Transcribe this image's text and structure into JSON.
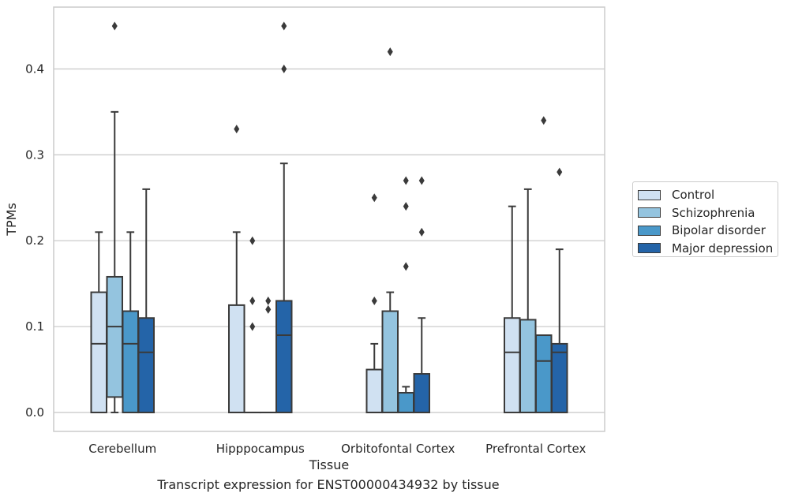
{
  "chart_data": {
    "type": "box",
    "xlabel": "Tissue",
    "ylabel": "TPMs",
    "ylim": [
      -0.022,
      0.472
    ],
    "yticks": [
      0.0,
      0.1,
      0.2,
      0.3,
      0.4
    ],
    "ytick_labels": [
      "0.0",
      "0.1",
      "0.2",
      "0.3",
      "0.4"
    ],
    "grid": "horizontal",
    "legend_position": "right",
    "categories": [
      "Cerebellum",
      "Hipppocampus",
      "Orbitofontal Cortex",
      "Prefrontal Cortex"
    ],
    "series": [
      {
        "name": "Control",
        "color": "#d0e1f2",
        "boxes": [
          {
            "whislo": 0.0,
            "q1": 0.0,
            "med": 0.08,
            "q3": 0.14,
            "whishi": 0.21,
            "fliers": []
          },
          {
            "whislo": 0.0,
            "q1": 0.0,
            "med": 0.0,
            "q3": 0.125,
            "whishi": 0.21,
            "fliers": [
              0.33
            ]
          },
          {
            "whislo": 0.0,
            "q1": 0.0,
            "med": 0.0,
            "q3": 0.05,
            "whishi": 0.08,
            "fliers": [
              0.13,
              0.25
            ]
          },
          {
            "whislo": 0.0,
            "q1": 0.0,
            "med": 0.07,
            "q3": 0.11,
            "whishi": 0.24,
            "fliers": []
          }
        ]
      },
      {
        "name": "Schizophrenia",
        "color": "#94c4df",
        "boxes": [
          {
            "whislo": 0.0,
            "q1": 0.018,
            "med": 0.1,
            "q3": 0.158,
            "whishi": 0.35,
            "fliers": [
              0.45
            ]
          },
          {
            "whislo": 0.0,
            "q1": 0.0,
            "med": 0.0,
            "q3": 0.0,
            "whishi": 0.0,
            "fliers": [
              0.1,
              0.13,
              0.2
            ]
          },
          {
            "whislo": 0.0,
            "q1": 0.0,
            "med": 0.0,
            "q3": 0.118,
            "whishi": 0.14,
            "fliers": [
              0.42
            ]
          },
          {
            "whislo": 0.0,
            "q1": 0.0,
            "med": 0.0,
            "q3": 0.108,
            "whishi": 0.26,
            "fliers": []
          }
        ]
      },
      {
        "name": "Bipolar disorder",
        "color": "#4a98c9",
        "boxes": [
          {
            "whislo": 0.0,
            "q1": 0.0,
            "med": 0.08,
            "q3": 0.118,
            "whishi": 0.21,
            "fliers": []
          },
          {
            "whislo": 0.0,
            "q1": 0.0,
            "med": 0.0,
            "q3": 0.0,
            "whishi": 0.0,
            "fliers": [
              0.12,
              0.13
            ]
          },
          {
            "whislo": 0.0,
            "q1": 0.0,
            "med": 0.0,
            "q3": 0.023,
            "whishi": 0.03,
            "fliers": [
              0.17,
              0.24,
              0.27
            ]
          },
          {
            "whislo": 0.0,
            "q1": 0.0,
            "med": 0.06,
            "q3": 0.09,
            "whishi": 0.09,
            "fliers": [
              0.34
            ]
          }
        ]
      },
      {
        "name": "Major depression",
        "color": "#2464a8",
        "boxes": [
          {
            "whislo": 0.0,
            "q1": 0.0,
            "med": 0.07,
            "q3": 0.11,
            "whishi": 0.26,
            "fliers": []
          },
          {
            "whislo": 0.0,
            "q1": 0.0,
            "med": 0.09,
            "q3": 0.13,
            "whishi": 0.29,
            "fliers": [
              0.4,
              0.45
            ]
          },
          {
            "whislo": 0.0,
            "q1": 0.0,
            "med": 0.0,
            "q3": 0.045,
            "whishi": 0.11,
            "fliers": [
              0.21,
              0.27
            ]
          },
          {
            "whislo": 0.0,
            "q1": 0.0,
            "med": 0.07,
            "q3": 0.08,
            "whishi": 0.19,
            "fliers": [
              0.28
            ]
          }
        ]
      }
    ]
  },
  "caption": "Transcript expression for ENST00000434932 by tissue"
}
